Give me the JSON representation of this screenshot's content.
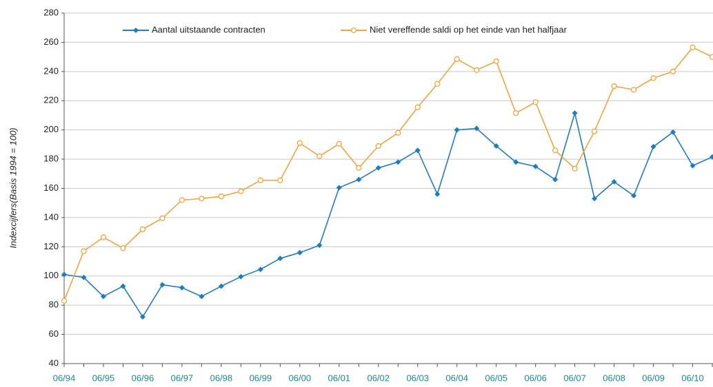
{
  "chart_data": {
    "type": "line",
    "y_label": "Indexcijfers(Basis 1994 = 100)",
    "categories": [
      "06/94",
      null,
      "06/95",
      null,
      "06/96",
      null,
      "06/97",
      null,
      "06/98",
      null,
      "06/99",
      null,
      "06/00",
      null,
      "06/01",
      null,
      "06/02",
      null,
      "06/03",
      null,
      "06/04",
      null,
      "06/05",
      null,
      "06/06",
      null,
      "06/07",
      null,
      "06/08",
      null,
      "06/09",
      null,
      "06/10",
      null
    ],
    "series": [
      {
        "name": "Aantal uitstaande contracten",
        "color": "#1f7cbf",
        "values": [
          101,
          99,
          86,
          93,
          72,
          94,
          92,
          86,
          93,
          99.5,
          104.5,
          112,
          116,
          121,
          160.5,
          166,
          174,
          178,
          186,
          156,
          200,
          201,
          189,
          178,
          175,
          166,
          211.5,
          153,
          164.5,
          155,
          188.5,
          198.5,
          175.5,
          181.5
        ]
      },
      {
        "name": "Niet vereffende saldi op het einde van het halfjaar",
        "color": "#f5a33c",
        "values": [
          83,
          117,
          126.5,
          119,
          132,
          139.5,
          152,
          153,
          154.5,
          158,
          165.5,
          165.5,
          191,
          182,
          190.5,
          174,
          189,
          198,
          215.5,
          231.5,
          248.5,
          241,
          247,
          211.5,
          219,
          186,
          173.5,
          199,
          230,
          227.5,
          235.5,
          240,
          256.5,
          250
        ]
      }
    ],
    "ylim": [
      40,
      280
    ],
    "yticks": [
      40,
      60,
      80,
      100,
      120,
      140,
      160,
      180,
      200,
      220,
      240,
      260,
      280
    ],
    "grid": true
  }
}
